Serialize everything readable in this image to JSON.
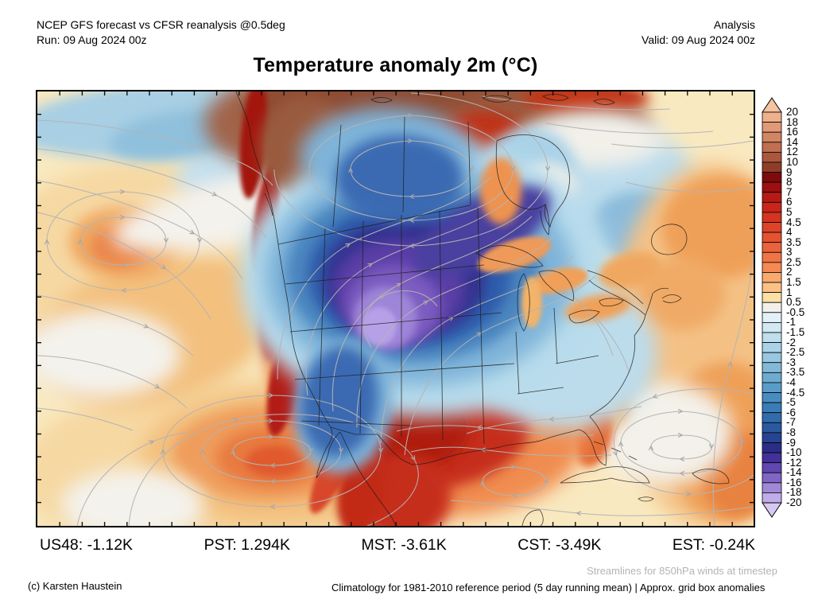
{
  "header": {
    "model_line": "NCEP GFS forecast vs CFSR reanalysis @0.5deg",
    "run_line": "Run: 09 Aug 2024 00z",
    "mode": "Analysis",
    "valid_line": "Valid: 09 Aug 2024 00z"
  },
  "title": "Temperature anomaly 2m (°C)",
  "stats": [
    {
      "label": "US48",
      "value": "-1.12K",
      "text": "US48: -1.12K"
    },
    {
      "label": "PST",
      "value": "1.294K",
      "text": "PST: 1.294K"
    },
    {
      "label": "MST",
      "value": "-3.61K",
      "text": "MST: -3.61K"
    },
    {
      "label": "CST",
      "value": "-3.49K",
      "text": "CST: -3.49K"
    },
    {
      "label": "EST",
      "value": "-0.24K",
      "text": "EST: -0.24K"
    }
  ],
  "footer": {
    "credit": "(c) Karsten Haustein",
    "streamline_note": "Streamlines for 850hPa winds at timestep",
    "climatology_note": "Climatology for 1981-2010 reference period (5 day running mean) | Approx. grid box anomalies"
  },
  "colorbar": {
    "units": "°C",
    "over_color": "#f4c3a0",
    "under_color": "#d8c9f2",
    "outline_color": "#000000",
    "tick_labels": [
      "20",
      "18",
      "16",
      "14",
      "12",
      "10",
      "9",
      "8",
      "7",
      "6",
      "5",
      "4.5",
      "4",
      "3.5",
      "3",
      "2.5",
      "2",
      "1.5",
      "1",
      "0.5",
      "-0.5",
      "-1",
      "-1.5",
      "-2",
      "-2.5",
      "-3",
      "-3.5",
      "-4",
      "-4.5",
      "-5",
      "-6",
      "-7",
      "-8",
      "-9",
      "-10",
      "-12",
      "-14",
      "-16",
      "-18",
      "-20"
    ],
    "segment_colors": [
      "#efb08c",
      "#e19a76",
      "#d28562",
      "#c06f4f",
      "#aa573e",
      "#8f3d29",
      "#7d0b0b",
      "#9d0f10",
      "#b71a15",
      "#c9251a",
      "#d43420",
      "#dd4329",
      "#e55232",
      "#eb633b",
      "#f07546",
      "#f48954",
      "#faa96c",
      "#fcc285",
      "#fbdfa4",
      "#f2f0e9",
      "#e2f0f7",
      "#d2e8f3",
      "#bfdeee",
      "#abd3e8",
      "#97c7e1",
      "#82b9d9",
      "#6dabd1",
      "#599cc9",
      "#488dc0",
      "#3a7db6",
      "#306cab",
      "#2a59a0",
      "#264492",
      "#2b2e87",
      "#44309a",
      "#6147b0",
      "#8065c4",
      "#a088d7",
      "#bfade8"
    ]
  },
  "map_colors": {
    "ocean_base": "#f9e9c0",
    "streamline": "#b4b4b4",
    "border": "#1f1c18",
    "cold_core": "#b7a0e8",
    "warm_core": "#7d0b0b"
  }
}
